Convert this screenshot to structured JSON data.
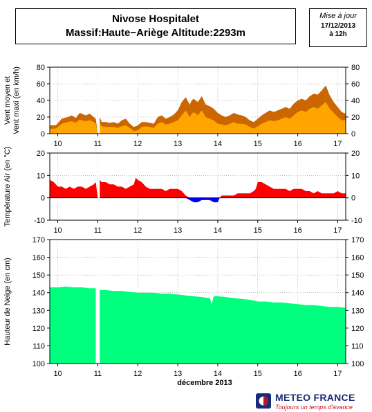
{
  "header": {
    "title_line1": "Nivose Hospitalet",
    "title_line2": "Massif:Haute−Ariège Altitude:2293m",
    "update_label": "Mise à jour",
    "update_date": "17/12/2013",
    "update_time": "à 12h"
  },
  "footer": {
    "logo_name": "METEO FRANCE",
    "logo_tagline": "Toujours un temps d'avance"
  },
  "chart_data": [
    {
      "type": "area",
      "ylabel": "Vent moyen et Vent maxi (en km/h)",
      "ylabel_lines": [
        "Vent moyen et",
        "Vent maxi (en km/h)"
      ],
      "ylim": [
        0,
        80
      ],
      "yticks": [
        0,
        20,
        40,
        60,
        80
      ],
      "xlim": [
        9.8,
        17.2
      ],
      "xticks": [
        10,
        11,
        12,
        13,
        14,
        15,
        16,
        17
      ],
      "xticklabels": [
        "10",
        "11",
        "12",
        "13",
        "14",
        "15",
        "16",
        "17"
      ],
      "grid": true,
      "gap": [
        11.0,
        11.05
      ],
      "colors": {
        "Vent maxi": "#cc6600",
        "Vent moyen": "#ffa500"
      },
      "series": [
        {
          "name": "Vent maxi",
          "x": [
            9.8,
            9.95,
            10.1,
            10.25,
            10.35,
            10.45,
            10.55,
            10.6,
            10.7,
            10.8,
            10.9,
            10.95,
            11.0,
            11.05,
            11.1,
            11.2,
            11.3,
            11.4,
            11.5,
            11.6,
            11.7,
            11.8,
            11.9,
            12.0,
            12.1,
            12.2,
            12.3,
            12.4,
            12.5,
            12.6,
            12.7,
            12.8,
            12.9,
            13.0,
            13.1,
            13.2,
            13.3,
            13.35,
            13.4,
            13.5,
            13.6,
            13.7,
            13.8,
            13.9,
            14.0,
            14.1,
            14.2,
            14.3,
            14.4,
            14.5,
            14.6,
            14.7,
            14.8,
            14.9,
            15.0,
            15.1,
            15.2,
            15.3,
            15.4,
            15.5,
            15.6,
            15.7,
            15.8,
            15.9,
            16.0,
            16.1,
            16.2,
            16.3,
            16.4,
            16.5,
            16.6,
            16.7,
            16.8,
            16.9,
            17.0,
            17.1,
            17.2
          ],
          "values": [
            10,
            10,
            18,
            20,
            22,
            19,
            25,
            24,
            22,
            24,
            20,
            18,
            0,
            20,
            14,
            14,
            13,
            14,
            12,
            16,
            18,
            12,
            8,
            10,
            14,
            14,
            13,
            12,
            20,
            22,
            18,
            20,
            23,
            28,
            38,
            44,
            35,
            40,
            42,
            38,
            45,
            35,
            33,
            30,
            25,
            22,
            20,
            22,
            25,
            23,
            22,
            20,
            16,
            14,
            18,
            22,
            25,
            28,
            26,
            28,
            30,
            32,
            30,
            36,
            40,
            42,
            40,
            45,
            48,
            47,
            52,
            58,
            46,
            38,
            32,
            26,
            24
          ]
        },
        {
          "name": "Vent moyen",
          "x": [
            9.8,
            9.95,
            10.1,
            10.25,
            10.35,
            10.45,
            10.55,
            10.6,
            10.7,
            10.8,
            10.9,
            10.95,
            11.0,
            11.05,
            11.1,
            11.2,
            11.3,
            11.4,
            11.5,
            11.6,
            11.7,
            11.8,
            11.9,
            12.0,
            12.1,
            12.2,
            12.3,
            12.4,
            12.5,
            12.6,
            12.7,
            12.8,
            12.9,
            13.0,
            13.1,
            13.2,
            13.3,
            13.35,
            13.4,
            13.5,
            13.6,
            13.7,
            13.8,
            13.9,
            14.0,
            14.1,
            14.2,
            14.3,
            14.4,
            14.5,
            14.6,
            14.7,
            14.8,
            14.9,
            15.0,
            15.1,
            15.2,
            15.3,
            15.4,
            15.5,
            15.6,
            15.7,
            15.8,
            15.9,
            16.0,
            16.1,
            16.2,
            16.3,
            16.4,
            16.5,
            16.6,
            16.7,
            16.8,
            16.9,
            17.0,
            17.1,
            17.2
          ],
          "values": [
            6,
            6,
            12,
            14,
            15,
            13,
            17,
            16,
            15,
            16,
            14,
            12,
            0,
            12,
            9,
            8,
            8,
            8,
            7,
            9,
            10,
            7,
            3,
            4,
            8,
            9,
            8,
            7,
            12,
            14,
            11,
            12,
            14,
            16,
            22,
            28,
            20,
            24,
            26,
            22,
            28,
            20,
            18,
            16,
            12,
            11,
            10,
            12,
            14,
            12,
            12,
            11,
            8,
            6,
            9,
            12,
            14,
            16,
            15,
            16,
            18,
            20,
            18,
            22,
            26,
            28,
            26,
            30,
            32,
            30,
            34,
            38,
            30,
            25,
            20,
            16,
            16
          ]
        }
      ]
    },
    {
      "type": "area",
      "ylabel": "Température Air (en °C)",
      "ylim": [
        -10,
        20
      ],
      "yticks": [
        -10,
        0,
        10,
        20
      ],
      "xlim": [
        9.8,
        17.2
      ],
      "xticks": [
        10,
        11,
        12,
        13,
        14,
        15,
        16,
        17
      ],
      "xticklabels": [
        "10",
        "11",
        "12",
        "13",
        "14",
        "15",
        "16",
        "17"
      ],
      "grid": true,
      "gap": [
        11.0,
        11.05
      ],
      "colors": {
        "positive": "#ff0000",
        "negative": "#0000ff"
      },
      "series": [
        {
          "x": [
            9.8,
            9.9,
            10.0,
            10.1,
            10.2,
            10.3,
            10.4,
            10.5,
            10.6,
            10.7,
            10.8,
            10.9,
            10.95,
            11.0,
            11.05,
            11.1,
            11.2,
            11.3,
            11.4,
            11.5,
            11.6,
            11.7,
            11.8,
            11.9,
            11.95,
            12.0,
            12.1,
            12.2,
            12.3,
            12.4,
            12.5,
            12.6,
            12.7,
            12.8,
            12.9,
            13.0,
            13.1,
            13.2,
            13.3,
            13.4,
            13.5,
            13.6,
            13.7,
            13.8,
            13.9,
            14.0,
            14.05,
            14.1,
            14.2,
            14.3,
            14.4,
            14.5,
            14.6,
            14.7,
            14.8,
            14.9,
            14.95,
            15.0,
            15.1,
            15.2,
            15.3,
            15.4,
            15.5,
            15.6,
            15.7,
            15.8,
            15.9,
            16.0,
            16.1,
            16.2,
            16.3,
            16.4,
            16.5,
            16.6,
            16.7,
            16.8,
            16.9,
            17.0,
            17.1,
            17.2
          ],
          "values": [
            8,
            7,
            5,
            5,
            4,
            5,
            4,
            5,
            5,
            4,
            5,
            6,
            7,
            0,
            8,
            7,
            7,
            6,
            6,
            5,
            5,
            4,
            5,
            6,
            9,
            8,
            7,
            5,
            4,
            4,
            4,
            4,
            3,
            4,
            4,
            4,
            3,
            1,
            -1,
            -2,
            -2,
            -1,
            -1,
            -1,
            -2,
            -2,
            0,
            1,
            1,
            1,
            1,
            2,
            2,
            2,
            2,
            3,
            4,
            7,
            7,
            6,
            5,
            4,
            4,
            4,
            4,
            3,
            4,
            4,
            4,
            3,
            3,
            2,
            3,
            2,
            2,
            2,
            2,
            3,
            2,
            2
          ]
        }
      ]
    },
    {
      "type": "area",
      "ylabel": "Hauteur de Neige (en cm)",
      "xlabel": "décembre 2013",
      "ylim": [
        100,
        170
      ],
      "yticks": [
        100,
        110,
        120,
        130,
        140,
        150,
        160,
        170
      ],
      "xlim": [
        9.8,
        17.2
      ],
      "xticks": [
        10,
        11,
        12,
        13,
        14,
        15,
        16,
        17
      ],
      "xticklabels": [
        "10",
        "11",
        "12",
        "13",
        "14",
        "15",
        "16",
        "17"
      ],
      "grid": true,
      "gap": [
        10.95,
        11.05
      ],
      "colors": {
        "fill": "#00ff7f"
      },
      "series": [
        {
          "x": [
            9.8,
            10.0,
            10.2,
            10.4,
            10.6,
            10.8,
            10.95,
            11.05,
            11.2,
            11.4,
            11.6,
            11.8,
            12.0,
            12.2,
            12.4,
            12.6,
            12.8,
            13.0,
            13.2,
            13.4,
            13.6,
            13.8,
            13.85,
            13.9,
            14.0,
            14.2,
            14.4,
            14.6,
            14.8,
            15.0,
            15.2,
            15.4,
            15.6,
            15.8,
            16.0,
            16.2,
            16.4,
            16.6,
            16.8,
            17.0,
            17.2
          ],
          "values": [
            143,
            143,
            143.5,
            143,
            143,
            142.5,
            142.5,
            141.5,
            141.5,
            141,
            141,
            140.5,
            140,
            140,
            140,
            139.5,
            139.5,
            139,
            138.5,
            138,
            137.5,
            137,
            133.5,
            138,
            138,
            137.5,
            137,
            136.5,
            136,
            135,
            135,
            134.5,
            134.5,
            134,
            133.5,
            133,
            133,
            132.5,
            132,
            132,
            131.5
          ]
        }
      ]
    }
  ]
}
